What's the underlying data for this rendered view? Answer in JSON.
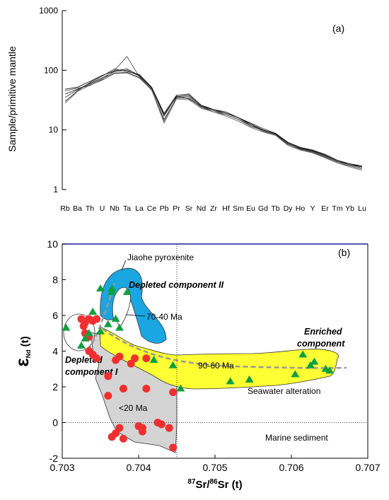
{
  "chart_data": [
    {
      "type": "line",
      "y_label": "Sample/primitive mantle",
      "annotations": [
        "(a)"
      ],
      "log_scale_y": true,
      "categories": [
        "Rb",
        "Ba",
        "Th",
        "U",
        "Nb",
        "Ta",
        "La",
        "Ce",
        "Pb",
        "Pr",
        "Sr",
        "Nd",
        "Zr",
        "Hf",
        "Sm",
        "Eu",
        "Gd",
        "Tb",
        "Dy",
        "Ho",
        "Y",
        "Er",
        "Tm",
        "Yb",
        "Lu"
      ],
      "ylim": [
        1,
        1000
      ],
      "yticks": [
        1,
        10,
        100,
        1000
      ],
      "series": [
        {
          "color": "#333333",
          "values": [
            40,
            48,
            60,
            75,
            95,
            100,
            80,
            50,
            17,
            37,
            33,
            25,
            21,
            19,
            16,
            12,
            10,
            8.5,
            6,
            5,
            4.5,
            3.8,
            3,
            2.7,
            2.4
          ]
        },
        {
          "color": "#555555",
          "values": [
            45,
            50,
            55,
            70,
            100,
            170,
            78,
            48,
            14,
            35,
            36,
            24,
            20,
            18,
            15,
            12,
            9.5,
            8.3,
            5.7,
            4.8,
            4.3,
            3.6,
            2.9,
            2.6,
            2.3
          ]
        },
        {
          "color": "#222222",
          "values": [
            30,
            45,
            62,
            80,
            105,
            95,
            85,
            52,
            19,
            38,
            40,
            26,
            22,
            20,
            16,
            13,
            10.5,
            8.8,
            6.2,
            5.1,
            4.6,
            3.9,
            3.1,
            2.7,
            2.5
          ]
        },
        {
          "color": "#444444",
          "values": [
            35,
            47,
            58,
            72,
            90,
            92,
            76,
            46,
            15,
            34,
            34,
            24,
            21,
            18,
            15,
            11.5,
            9.8,
            8.4,
            5.8,
            4.7,
            4.2,
            3.5,
            2.8,
            2.5,
            2.2
          ]
        },
        {
          "color": "#111111",
          "values": [
            48,
            52,
            65,
            82,
            98,
            105,
            82,
            50,
            18,
            36,
            38,
            25,
            22,
            19,
            16,
            12.5,
            10,
            8.6,
            6,
            4.9,
            4.4,
            3.7,
            3,
            2.6,
            2.4
          ]
        },
        {
          "color": "#666666",
          "values": [
            28,
            44,
            56,
            68,
            88,
            90,
            74,
            47,
            13,
            33,
            32,
            23,
            20,
            17,
            14,
            11,
            9.2,
            8.1,
            5.5,
            4.6,
            4.1,
            3.4,
            2.8,
            2.4,
            2.1
          ]
        }
      ]
    },
    {
      "type": "scatter",
      "x_label_parts": [
        "87",
        "Sr/",
        "86",
        "Sr (t)"
      ],
      "y_label_parts": [
        "ε",
        "Nd",
        "(t)"
      ],
      "annotations": [
        "(b)",
        "Jiaohe pyroxenite",
        "Depleted component II",
        "70-40 Ma",
        "Enriched",
        "component",
        "Depleted",
        "component I",
        "90-60 Ma",
        "Seawater alteration",
        "<20 Ma",
        "Marine sediment"
      ],
      "xlim": [
        0.703,
        0.707
      ],
      "xticks": [
        0.703,
        0.704,
        0.705,
        0.706,
        0.707
      ],
      "ylim": [
        -2,
        10
      ],
      "yticks": [
        -2,
        0,
        2,
        4,
        6,
        8,
        10
      ],
      "reference_lines": {
        "x": 0.7045,
        "y": 0
      },
      "series": [
        {
          "color": "#f03030",
          "marker": "circle",
          "x": [
            0.70325,
            0.7033,
            0.70335,
            0.7034,
            0.70345,
            0.70328,
            0.7033,
            0.70335,
            0.70335,
            0.7034,
            0.70345,
            0.7036,
            0.7037,
            0.70375,
            0.7038,
            0.7039,
            0.70395,
            0.7041,
            0.7041,
            0.7036,
            0.70375,
            0.7037,
            0.70365,
            0.7038,
            0.704,
            0.70405,
            0.70405,
            0.70425,
            0.7043,
            0.7044,
            0.70445,
            0.70445
          ],
          "y": [
            5.8,
            5.6,
            5.8,
            5.7,
            5.8,
            5.4,
            5.0,
            4.8,
            4.0,
            3.8,
            3.6,
            2.6,
            3.5,
            3.7,
            1.9,
            3.3,
            3.6,
            3.6,
            1.9,
            1.5,
            -0.3,
            -0.6,
            -0.8,
            -0.9,
            -0.2,
            -0.3,
            -0.5,
            0.0,
            -0.1,
            -0.3,
            -1.4,
            1.7
          ]
        },
        {
          "color": "#10a040",
          "marker": "triangle",
          "x": [
            0.70305,
            0.70325,
            0.7033,
            0.70335,
            0.7034,
            0.7035,
            0.70365,
            0.70365,
            0.70385,
            0.7037,
            0.70375,
            0.7036,
            0.7035,
            0.7042,
            0.70445,
            0.70455,
            0.7052,
            0.70545,
            0.70605,
            0.70615,
            0.70625,
            0.7063,
            0.70645,
            0.7065
          ],
          "y": [
            5.3,
            4.3,
            4.7,
            5.0,
            6.2,
            7.5,
            7.5,
            7.3,
            7.3,
            5.8,
            5.3,
            5.5,
            5.1,
            3.5,
            3.2,
            1.9,
            2.3,
            2.4,
            2.7,
            3.8,
            3.2,
            3.4,
            3.0,
            2.9
          ]
        }
      ]
    }
  ]
}
